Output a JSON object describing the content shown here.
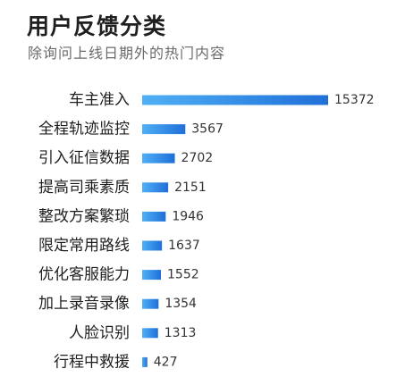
{
  "header": {
    "title": "用户反馈分类",
    "subtitle": "除询问上线日期外的热门内容"
  },
  "colors": {
    "bar_start": "#4fb0f5",
    "bar_end": "#1f6fd8"
  },
  "chart_data": {
    "type": "bar",
    "orientation": "horizontal",
    "categories": [
      "车主准入",
      "全程轨迹监控",
      "引入征信数据",
      "提高司乘素质",
      "整改方案繁琐",
      "限定常用路线",
      "优化客服能力",
      "加上录音录像",
      "人脸识别",
      "行程中救援"
    ],
    "values": [
      15372,
      3567,
      2702,
      2151,
      1946,
      1637,
      1552,
      1354,
      1313,
      427
    ],
    "value_labels": [
      "15372",
      "3567",
      "2702",
      "2151",
      "1946",
      "1637",
      "1552",
      "1354",
      "1313",
      "427"
    ],
    "xlim": [
      0,
      15372
    ],
    "grid": false,
    "legend": "none"
  }
}
